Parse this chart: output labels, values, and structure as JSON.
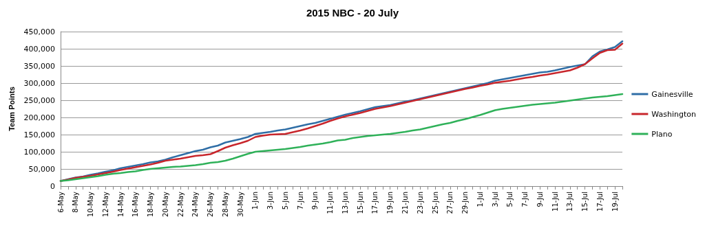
{
  "chart_data": {
    "type": "line",
    "title": "2015 NBC - 20 July",
    "ylabel": "Team Points",
    "categories": [
      "6-May",
      null,
      "8-May",
      null,
      "10-May",
      null,
      "12-May",
      null,
      "14-May",
      null,
      "16-May",
      null,
      "18-May",
      null,
      "20-May",
      null,
      "22-May",
      null,
      "24-May",
      null,
      "26-May",
      null,
      "28-May",
      null,
      "30-May",
      null,
      "1-Jun",
      null,
      "3-Jun",
      null,
      "5-Jun",
      null,
      "7-Jun",
      null,
      "9-Jun",
      null,
      "11-Jun",
      null,
      "13-Jun",
      null,
      "15-Jun",
      null,
      "17-Jun",
      null,
      "19-Jun",
      null,
      "21-Jun",
      null,
      "23-Jun",
      null,
      "25-Jun",
      null,
      "27-Jun",
      null,
      "29-Jun",
      null,
      "1-Jul",
      null,
      "3-Jul",
      null,
      "5-Jul",
      null,
      "7-Jul",
      null,
      "9-Jul",
      null,
      "11-Jul",
      null,
      "13-Jul",
      null,
      "15-Jul",
      null,
      "17-Jul",
      null,
      "19-Jul",
      null
    ],
    "series": [
      {
        "name": "Gainesville",
        "color": "#2f6ea6",
        "values": [
          15000,
          20000,
          25000,
          28000,
          33000,
          37000,
          42000,
          46000,
          52000,
          56000,
          60000,
          64000,
          69000,
          72000,
          77000,
          84000,
          90000,
          96000,
          102000,
          106000,
          113000,
          118000,
          127000,
          132000,
          137000,
          143000,
          152000,
          155000,
          158000,
          162000,
          165000,
          170000,
          175000,
          180000,
          184000,
          190000,
          196000,
          202000,
          208000,
          213000,
          218000,
          224000,
          230000,
          233000,
          236000,
          241000,
          246000,
          250000,
          255000,
          260000,
          265000,
          270000,
          275000,
          280000,
          285000,
          290000,
          295000,
          300000,
          307000,
          311000,
          315000,
          319000,
          323000,
          327000,
          331000,
          333000,
          337000,
          342000,
          347000,
          351000,
          355000,
          378000,
          392000,
          398000,
          405000,
          422000
        ]
      },
      {
        "name": "Washington",
        "color": "#c8262c",
        "values": [
          15000,
          19000,
          24000,
          27000,
          30000,
          34000,
          38000,
          42000,
          47000,
          51000,
          55000,
          59000,
          63000,
          68000,
          74000,
          77000,
          80000,
          84000,
          88000,
          90000,
          93000,
          102000,
          112000,
          119000,
          125000,
          132000,
          143000,
          147000,
          150000,
          151000,
          152000,
          157000,
          162000,
          168000,
          175000,
          182000,
          190000,
          197000,
          203000,
          208000,
          213000,
          219000,
          225000,
          229000,
          233000,
          238000,
          243000,
          248000,
          253000,
          258000,
          263000,
          268000,
          273000,
          278000,
          283000,
          287000,
          292000,
          296000,
          301000,
          304000,
          307000,
          311000,
          315000,
          318000,
          322000,
          325000,
          329000,
          333000,
          337000,
          345000,
          355000,
          372000,
          388000,
          396000,
          397000,
          415000
        ]
      },
      {
        "name": "Plano",
        "color": "#2fb159",
        "values": [
          15000,
          17000,
          20000,
          23000,
          26000,
          29000,
          33000,
          36000,
          38000,
          41000,
          43000,
          47000,
          50000,
          52000,
          54000,
          56000,
          57000,
          59000,
          61000,
          64000,
          68000,
          70000,
          74000,
          80000,
          87000,
          94000,
          100000,
          102000,
          104000,
          106000,
          108000,
          111000,
          114000,
          118000,
          121000,
          124000,
          128000,
          133000,
          135000,
          140000,
          143000,
          146000,
          148000,
          150000,
          152000,
          155000,
          158000,
          162000,
          165000,
          170000,
          175000,
          180000,
          184000,
          190000,
          195000,
          201000,
          207000,
          214000,
          221000,
          225000,
          228000,
          231000,
          234000,
          237000,
          239000,
          241000,
          243000,
          246000,
          249000,
          252000,
          255000,
          258000,
          260000,
          262000,
          265000,
          268000
        ]
      }
    ],
    "ylim": [
      0,
      450000
    ],
    "yticks": [
      0,
      {
        "value": 50000,
        "label": "50,000"
      },
      {
        "value": 100000,
        "label": "100,000"
      },
      {
        "value": 150000,
        "label": "150,000"
      },
      {
        "value": 200000,
        "label": "200,000"
      },
      {
        "value": 250000,
        "label": "250,000"
      },
      {
        "value": 300000,
        "label": "300,000"
      },
      {
        "value": 350000,
        "label": "350,000"
      },
      {
        "value": 400000,
        "label": "400,000"
      },
      {
        "value": 450000,
        "label": "450,000"
      }
    ],
    "grid": "y",
    "legend": "right",
    "marker": "none",
    "line_style": "solid"
  }
}
